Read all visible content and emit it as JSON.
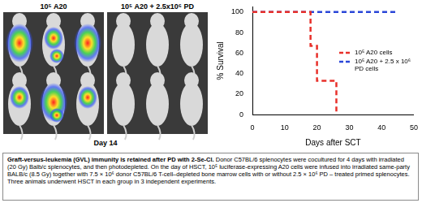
{
  "chart_data": {
    "type": "step",
    "x_label": "Days after SCT",
    "y_label": "% Survival",
    "xlim": [
      0,
      50
    ],
    "xticks": [
      0,
      10,
      20,
      30,
      40,
      50
    ],
    "ylim": [
      0,
      105
    ],
    "yticks": [
      0,
      20,
      40,
      60,
      80,
      100
    ],
    "grid": false,
    "legend": "right",
    "line_style": "dashed",
    "marker": "none",
    "series": [
      {
        "name": "10⁵ A20 cells",
        "color": "#e8302a",
        "x": [
          0,
          18,
          20,
          26
        ],
        "values": [
          100,
          67,
          33,
          0
        ]
      },
      {
        "name": "10⁵ A20 + 2.5 x 10⁶ PD cells",
        "color": "#2a46d8",
        "x": [
          0,
          45
        ],
        "values": [
          100,
          100
        ]
      }
    ]
  },
  "figure": {
    "panel_labels": [
      "10⁵ A20",
      "10⁵ A20 + 2.5x10⁶ PD"
    ],
    "time_label": "Day 14",
    "caption": {
      "title": "Graft-versus-leukemia (GVL) immunity is retained after PD with 2-Se-Cl.",
      "text": "Donor C57BL/6 splenocytes were cocultured for 4 days with irradiated (20 Gy) Balb/c splenocytes, and then photodepleted. On the day of HSCT, 10⁵ luciferase-expressing A20 cells were infused into irradiated same-party BALB/c (8.5 Gy) together with 7.5 × 10⁶ donor C57BL/6 T-cell–depleted bone marrow cells with or without 2.5 × 10⁶ PD – treated primed splenocytes. Three animals underwent HSCT in each group in 3 independent experiments."
    }
  }
}
